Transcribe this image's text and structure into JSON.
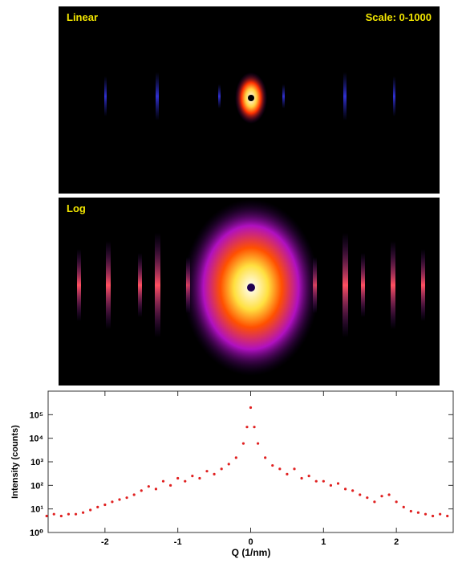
{
  "images": [
    {
      "label": "Linear",
      "scale": "Scale: 0-1000"
    },
    {
      "label": "Log"
    }
  ],
  "chart_data": {
    "type": "scatter",
    "x_label": "Q (1/nm)",
    "y_label": "Intensity (counts)",
    "color": "#e02020",
    "log_y": true,
    "xlim": [
      -2.78,
      2.78
    ],
    "ylim": [
      1,
      1000000
    ],
    "xticks": [
      -2,
      -1,
      0,
      1,
      2
    ],
    "yticks": [
      {
        "value": 1,
        "label": "10⁰"
      },
      {
        "value": 10,
        "label": "10¹"
      },
      {
        "value": 100,
        "label": "10²"
      },
      {
        "value": 1000,
        "label": "10³"
      },
      {
        "value": 10000,
        "label": "10⁴"
      },
      {
        "value": 100000,
        "label": "10⁵"
      }
    ],
    "x": [
      -2.8,
      -2.7,
      -2.6,
      -2.5,
      -2.4,
      -2.3,
      -2.2,
      -2.1,
      -2.0,
      -1.9,
      -1.8,
      -1.7,
      -1.6,
      -1.5,
      -1.4,
      -1.3,
      -1.2,
      -1.1,
      -1.0,
      -0.9,
      -0.8,
      -0.7,
      -0.6,
      -0.5,
      -0.4,
      -0.3,
      -0.2,
      -0.1,
      -0.05,
      0,
      0.05,
      0.1,
      0.2,
      0.3,
      0.4,
      0.5,
      0.6,
      0.7,
      0.8,
      0.9,
      1.0,
      1.1,
      1.2,
      1.3,
      1.4,
      1.5,
      1.6,
      1.7,
      1.8,
      1.9,
      2.0,
      2.1,
      2.2,
      2.3,
      2.4,
      2.5,
      2.6,
      2.7
    ],
    "values": [
      5,
      6,
      5,
      6,
      6,
      7,
      9,
      12,
      15,
      20,
      25,
      30,
      40,
      60,
      90,
      70,
      150,
      100,
      200,
      150,
      250,
      200,
      400,
      300,
      500,
      800,
      1500,
      6000,
      30000,
      200000,
      30000,
      6000,
      1500,
      700,
      500,
      300,
      500,
      200,
      250,
      150,
      150,
      100,
      120,
      70,
      60,
      40,
      30,
      20,
      35,
      40,
      20,
      12,
      8,
      7,
      6,
      5,
      6,
      5
    ]
  }
}
